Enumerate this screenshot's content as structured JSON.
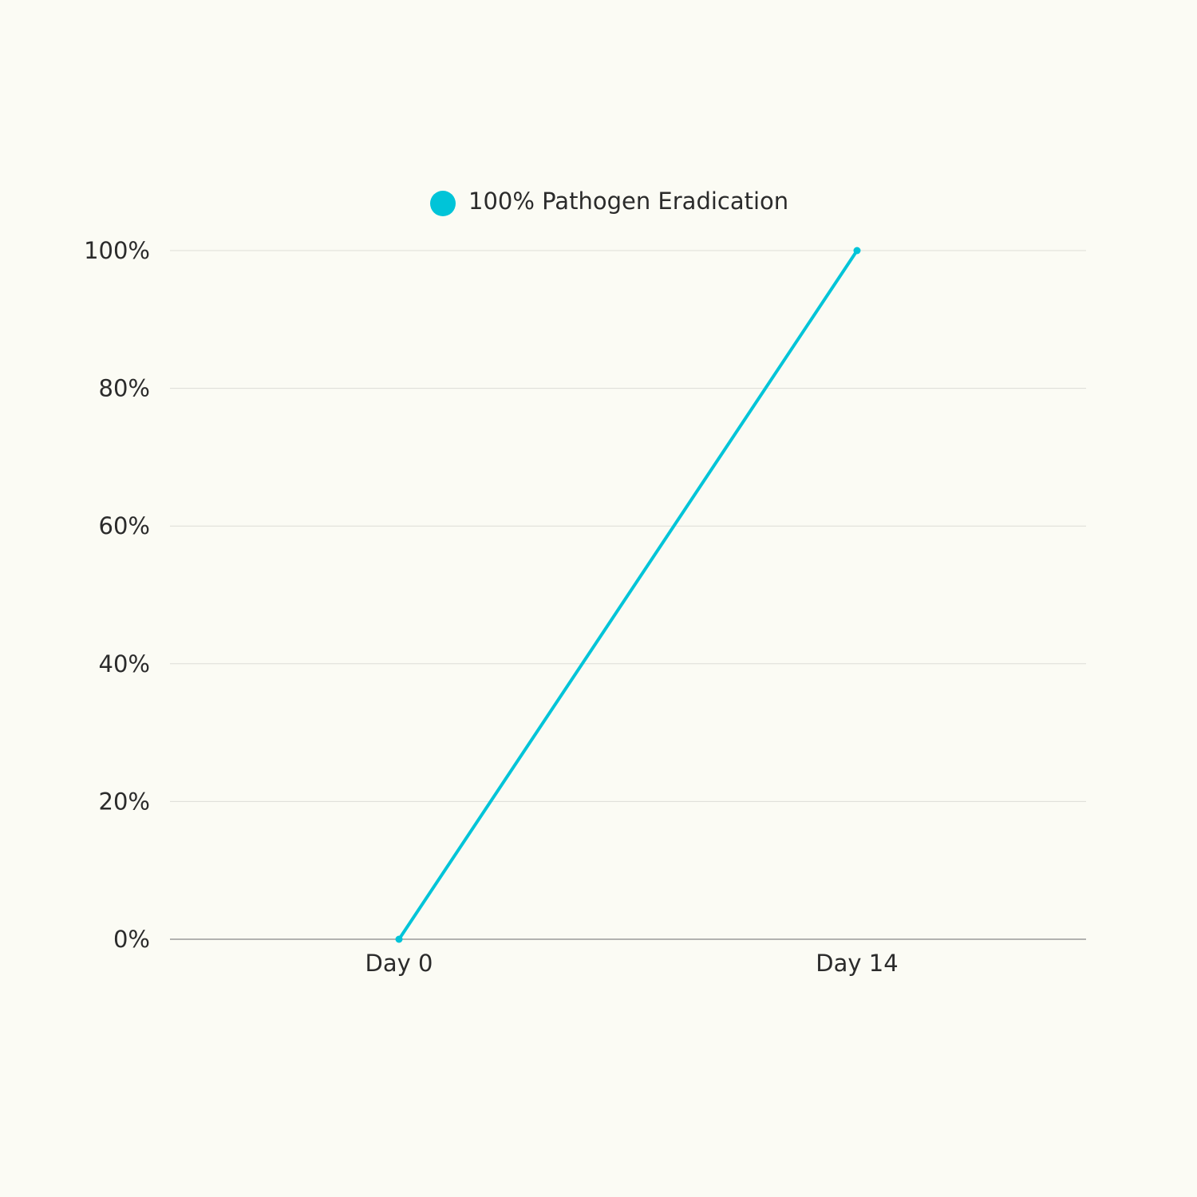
{
  "chart_data": {
    "type": "line",
    "categories": [
      "Day 0",
      "Day 14"
    ],
    "series": [
      {
        "name": "100% Pathogen Eradication",
        "color": "#00c4d8",
        "values": [
          0,
          100
        ]
      }
    ],
    "ylim": [
      0,
      100
    ],
    "yticks": [
      {
        "value": 0,
        "label": "0%"
      },
      {
        "value": 20,
        "label": "20%"
      },
      {
        "value": 40,
        "label": "40%"
      },
      {
        "value": 60,
        "label": "60%"
      },
      {
        "value": 80,
        "label": "80%"
      },
      {
        "value": 100,
        "label": "100%"
      }
    ],
    "grid": true,
    "legend": "top"
  }
}
